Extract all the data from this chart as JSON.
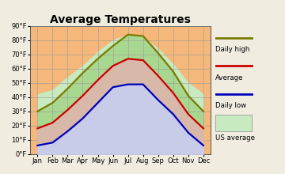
{
  "title": "Average Temperatures",
  "months": [
    "Jan",
    "Feb",
    "Mar",
    "Apr",
    "May",
    "Jun",
    "Jul",
    "Aug",
    "Sep",
    "Oct",
    "Nov",
    "Dec"
  ],
  "daily_high": [
    30,
    36,
    46,
    57,
    67,
    76,
    84,
    83,
    71,
    58,
    41,
    30
  ],
  "average": [
    18,
    22,
    31,
    41,
    52,
    62,
    67,
    66,
    55,
    43,
    28,
    18
  ],
  "daily_low": [
    6,
    8,
    16,
    25,
    36,
    47,
    49,
    49,
    38,
    28,
    15,
    6
  ],
  "us_high": [
    42,
    45,
    54,
    62,
    72,
    80,
    84,
    82,
    74,
    63,
    50,
    42
  ],
  "us_low": [
    22,
    24,
    31,
    39,
    48,
    56,
    61,
    59,
    51,
    40,
    30,
    22
  ],
  "ylim": [
    0,
    90
  ],
  "yticks": [
    0,
    10,
    20,
    30,
    40,
    50,
    60,
    70,
    80,
    90
  ],
  "ytick_labels": [
    "0°F",
    "10°F",
    "20°F",
    "30°F",
    "40°F",
    "50°F",
    "60°F",
    "70°F",
    "80°F",
    "90°F"
  ],
  "color_high": "#7b7b00",
  "color_avg": "#cc0000",
  "color_low": "#0000bb",
  "color_bg_orange": "#f5b87a",
  "color_fill_green": "#a8d890",
  "color_fill_peach": "#d8b8a8",
  "color_fill_blue": "#c8cce8",
  "color_fill_us": "#c8eac0",
  "bg_color": "#f0ede0"
}
